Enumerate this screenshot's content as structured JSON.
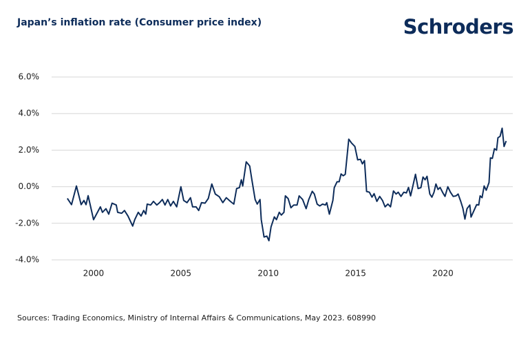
{
  "chart_data": {
    "type": "line",
    "title": "Japan’s inflation rate (Consumer price index)",
    "logo": "Schroders",
    "source": "Sources: Trading Economics, Ministry of Internal Affairs & Communications, May 2023. 608990",
    "x": [
      1998.5,
      1998.74,
      1999.02,
      1999.29,
      1999.45,
      1999.57,
      1999.69,
      2000.0,
      2000.39,
      2000.51,
      2000.71,
      2000.87,
      2001.06,
      2001.3,
      2001.38,
      2001.61,
      2001.77,
      2001.97,
      2002.24,
      2002.36,
      2002.56,
      2002.72,
      2002.87,
      2002.99,
      2003.07,
      2003.27,
      2003.43,
      2003.62,
      2003.78,
      2003.94,
      2004.09,
      2004.25,
      2004.41,
      2004.57,
      2004.76,
      2005.0,
      2005.16,
      2005.35,
      2005.55,
      2005.67,
      2005.87,
      2006.02,
      2006.18,
      2006.38,
      2006.57,
      2006.77,
      2006.97,
      2007.2,
      2007.4,
      2007.6,
      2007.83,
      2008.03,
      2008.19,
      2008.35,
      2008.46,
      2008.54,
      2008.74,
      2008.94,
      2009.06,
      2009.25,
      2009.37,
      2009.53,
      2009.6,
      2009.76,
      2009.92,
      2010.04,
      2010.16,
      2010.35,
      2010.47,
      2010.63,
      2010.75,
      2010.9,
      2010.98,
      2011.14,
      2011.3,
      2011.46,
      2011.65,
      2011.77,
      2011.97,
      2012.17,
      2012.32,
      2012.52,
      2012.64,
      2012.8,
      2012.95,
      2013.11,
      2013.27,
      2013.35,
      2013.5,
      2013.7,
      2013.78,
      2013.94,
      2014.06,
      2014.17,
      2014.29,
      2014.41,
      2014.61,
      2014.76,
      2014.96,
      2015.12,
      2015.28,
      2015.39,
      2015.51,
      2015.63,
      2015.79,
      2015.94,
      2016.06,
      2016.22,
      2016.38,
      2016.54,
      2016.69,
      2016.85,
      2017.0,
      2017.17,
      2017.32,
      2017.44,
      2017.6,
      2017.76,
      2017.91,
      2018.03,
      2018.15,
      2018.27,
      2018.43,
      2018.58,
      2018.74,
      2018.86,
      2018.98,
      2019.09,
      2019.25,
      2019.37,
      2019.49,
      2019.6,
      2019.72,
      2019.84,
      2020.0,
      2020.12,
      2020.28,
      2020.43,
      2020.59,
      2020.75,
      2020.87,
      2021.02,
      2021.14,
      2021.26,
      2021.38,
      2021.54,
      2021.61,
      2021.77,
      2021.93,
      2022.05,
      2022.13,
      2022.24,
      2022.36,
      2022.48,
      2022.64,
      2022.72,
      2022.83,
      2022.95,
      2023.07,
      2023.15,
      2023.27,
      2023.39,
      2023.5,
      2023.62
    ],
    "series": [
      {
        "color": "#0d2c5a",
        "values": [
          -0.64,
          -0.98,
          0.04,
          -0.98,
          -0.75,
          -0.98,
          -0.49,
          -1.8,
          -1.1,
          -1.4,
          -1.2,
          -1.5,
          -0.9,
          -1.0,
          -1.4,
          -1.45,
          -1.3,
          -1.6,
          -2.15,
          -1.8,
          -1.4,
          -1.6,
          -1.3,
          -1.5,
          -0.95,
          -1.0,
          -0.8,
          -1.0,
          -0.87,
          -0.7,
          -1.0,
          -0.7,
          -1.05,
          -0.8,
          -1.1,
          0.0,
          -0.75,
          -0.87,
          -0.6,
          -1.1,
          -1.1,
          -1.3,
          -0.87,
          -0.9,
          -0.64,
          0.15,
          -0.4,
          -0.55,
          -0.87,
          -0.6,
          -0.8,
          -0.95,
          -0.1,
          -0.05,
          0.38,
          0.04,
          1.36,
          1.13,
          0.4,
          -0.7,
          -0.95,
          -0.7,
          -1.8,
          -2.75,
          -2.7,
          -2.95,
          -2.2,
          -1.65,
          -1.8,
          -1.4,
          -1.55,
          -1.4,
          -0.5,
          -0.65,
          -1.15,
          -1.0,
          -1.0,
          -0.5,
          -0.7,
          -1.2,
          -0.7,
          -0.25,
          -0.4,
          -0.95,
          -1.05,
          -0.95,
          -1.0,
          -0.87,
          -1.5,
          -0.75,
          -0.05,
          0.27,
          0.27,
          0.7,
          0.6,
          0.68,
          2.6,
          2.4,
          2.2,
          1.47,
          1.5,
          1.25,
          1.43,
          -0.26,
          -0.3,
          -0.57,
          -0.38,
          -0.8,
          -0.53,
          -0.75,
          -1.1,
          -0.95,
          -1.1,
          -0.23,
          -0.4,
          -0.3,
          -0.53,
          -0.3,
          -0.34,
          -0.04,
          -0.5,
          0.0,
          0.68,
          -0.1,
          -0.05,
          0.53,
          0.38,
          0.57,
          -0.4,
          -0.57,
          -0.3,
          0.15,
          -0.15,
          -0.04,
          -0.34,
          -0.53,
          0.0,
          -0.3,
          -0.53,
          -0.5,
          -0.4,
          -0.8,
          -1.17,
          -1.77,
          -1.2,
          -1.0,
          -1.66,
          -1.32,
          -0.98,
          -1.0,
          -0.5,
          -0.6,
          0.04,
          -0.19,
          0.23,
          1.58,
          1.55,
          2.08,
          2.0,
          2.68,
          2.75,
          3.2,
          2.2,
          2.5
        ]
      }
    ],
    "xlim": [
      1997.6,
      2024
    ],
    "xticks": [
      2000,
      2005,
      2010,
      2015,
      2020
    ],
    "ylim": [
      -4,
      6
    ],
    "yticks": [
      {
        "value": -4,
        "label": "-4.0%"
      },
      {
        "value": -2,
        "label": "-2.0%"
      },
      {
        "value": 0,
        "label": "0.0%"
      },
      {
        "value": 2,
        "label": "2.0%"
      },
      {
        "value": 4,
        "label": "4.0%"
      },
      {
        "value": 6,
        "label": "6.0%"
      }
    ],
    "grid": true
  }
}
